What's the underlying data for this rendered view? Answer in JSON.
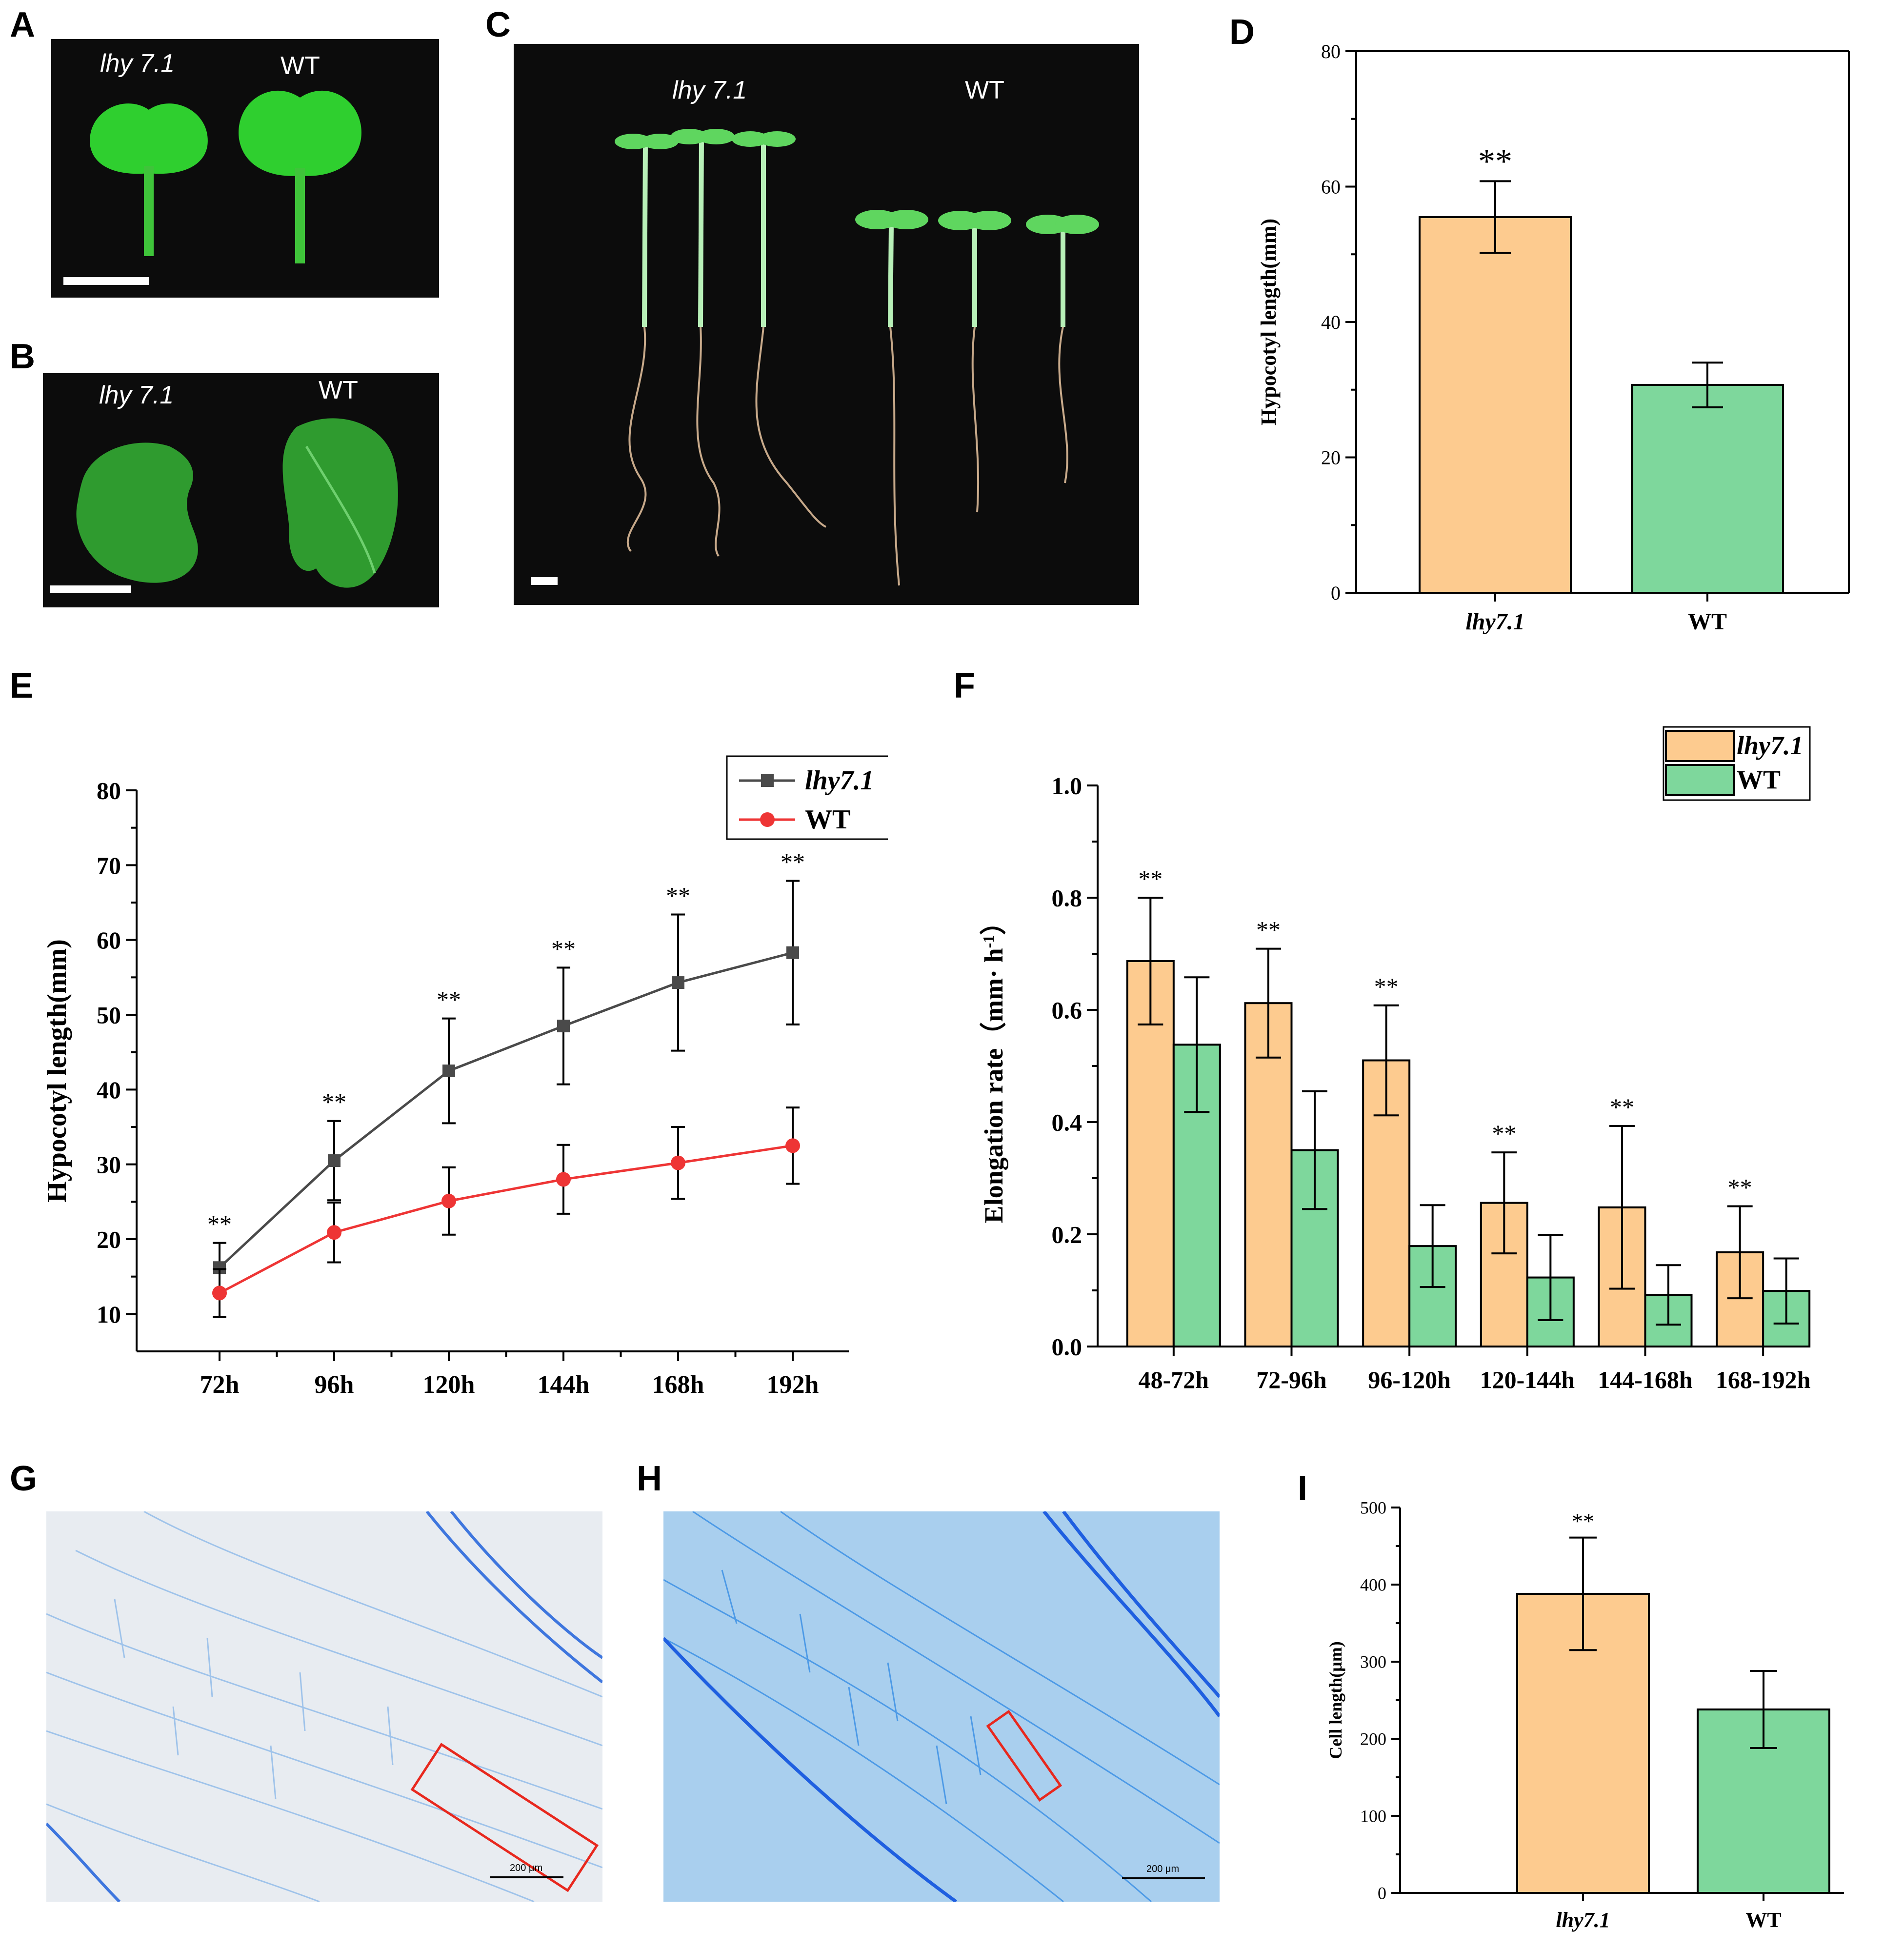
{
  "panels": {
    "A": {
      "letter": "A",
      "label_left": "lhy 7.1",
      "label_right": "WT"
    },
    "B": {
      "letter": "B",
      "label_left": "lhy 7.1",
      "label_right": "WT"
    },
    "C": {
      "letter": "C",
      "label_left": "lhy 7.1",
      "label_right": "WT"
    },
    "D": {
      "letter": "D"
    },
    "E": {
      "letter": "E"
    },
    "F": {
      "letter": "F"
    },
    "G": {
      "letter": "G",
      "scale_label": "200 μm"
    },
    "H": {
      "letter": "H",
      "scale_label": "200 μm"
    },
    "I": {
      "letter": "I"
    }
  },
  "colors": {
    "lhy": "#FDCB8F",
    "wt": "#7ED79C",
    "line_lhy": "#4a4a4a",
    "line_wt": "#EE3535",
    "roi": "#E8281E"
  },
  "chart_data": [
    {
      "id": "D",
      "type": "bar",
      "categories": [
        "lhy7.1",
        "WT"
      ],
      "values": [
        55.5,
        30.7
      ],
      "errors": [
        5.3,
        3.3
      ],
      "significance": [
        "**",
        ""
      ],
      "ylabel": "Hypocotyl length(mm)",
      "ylim": [
        0,
        80
      ],
      "yticks": [
        "0",
        "20",
        "40",
        "60",
        "80"
      ]
    },
    {
      "id": "E",
      "type": "line",
      "x": [
        "72h",
        "96h",
        "120h",
        "144h",
        "168h",
        "192h"
      ],
      "series": [
        {
          "name": "lhy7.1",
          "values": [
            16.2,
            30.5,
            42.5,
            48.5,
            54.3,
            58.3
          ],
          "errors": [
            3.3,
            5.3,
            7.0,
            7.8,
            9.1,
            9.6
          ]
        },
        {
          "name": "WT",
          "values": [
            12.8,
            20.9,
            25.1,
            28.0,
            30.2,
            32.5
          ],
          "errors": [
            3.2,
            4.0,
            4.5,
            4.6,
            4.8,
            5.1
          ]
        }
      ],
      "significance": [
        "**",
        "**",
        "**",
        "**",
        "**",
        "**"
      ],
      "ylabel": "Hypocotyl length(mm)",
      "ylim": [
        5,
        80
      ],
      "yticks": [
        "10",
        "20",
        "30",
        "40",
        "50",
        "60",
        "70",
        "80"
      ]
    },
    {
      "id": "F",
      "type": "bar",
      "categories": [
        "48-72h",
        "72-96h",
        "96-120h",
        "120-144h",
        "144-168h",
        "168-192h"
      ],
      "series": [
        {
          "name": "lhy7.1",
          "values": [
            0.687,
            0.612,
            0.51,
            0.256,
            0.248,
            0.168
          ],
          "errors": [
            0.113,
            0.097,
            0.098,
            0.09,
            0.145,
            0.082
          ]
        },
        {
          "name": "WT",
          "values": [
            0.538,
            0.35,
            0.179,
            0.123,
            0.092,
            0.099
          ],
          "errors": [
            0.12,
            0.105,
            0.073,
            0.076,
            0.053,
            0.058
          ]
        }
      ],
      "significance": [
        "**",
        "**",
        "**",
        "**",
        "**",
        "**"
      ],
      "ylabel": "Elongation rate（mm· h",
      "ylabel_sup": "-1",
      "ylabel_end": "）",
      "ylim": [
        0,
        1.0
      ],
      "yticks": [
        "0.0",
        "0.2",
        "0.4",
        "0.6",
        "0.8",
        "1.0"
      ]
    },
    {
      "id": "I",
      "type": "bar",
      "categories": [
        "lhy7.1",
        "WT"
      ],
      "values": [
        388,
        238
      ],
      "errors": [
        73,
        50
      ],
      "significance": [
        "**",
        ""
      ],
      "ylabel": "Cell length(μm)",
      "ylim": [
        0,
        500
      ],
      "yticks": [
        "0",
        "100",
        "200",
        "300",
        "400",
        "500"
      ]
    }
  ]
}
